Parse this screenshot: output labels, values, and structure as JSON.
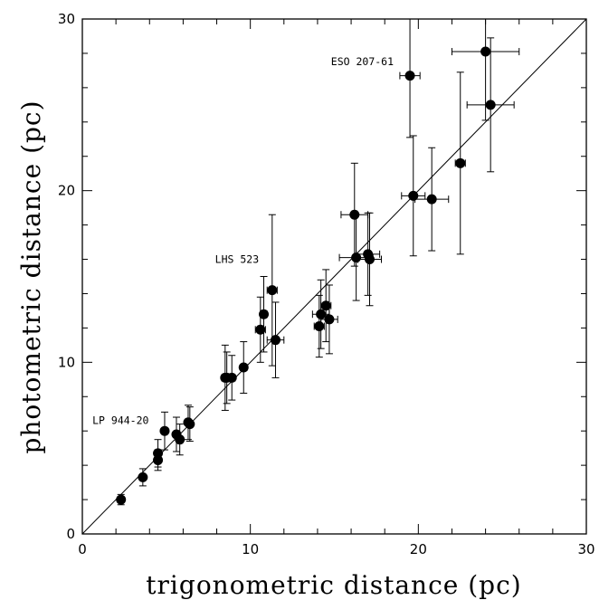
{
  "chart_data": {
    "type": "scatter",
    "title": "",
    "xlabel": "trigonometric distance (pc)",
    "ylabel": "photometric distance (pc)",
    "xlim": [
      0,
      30
    ],
    "ylim": [
      0,
      30
    ],
    "x_ticks": [
      0,
      10,
      20,
      30
    ],
    "y_ticks": [
      0,
      10,
      20,
      30
    ],
    "grid": false,
    "reference_line": "y = x",
    "series": [
      {
        "points": [
          {
            "x": 2.3,
            "y": 2.0,
            "xerr": 0.1,
            "yerr": 0.3
          },
          {
            "x": 3.6,
            "y": 3.3,
            "xerr": 0.1,
            "yerr": 0.5
          },
          {
            "x": 4.5,
            "y": 4.3,
            "xerr": 0.1,
            "yerr": 0.6
          },
          {
            "x": 4.5,
            "y": 4.7,
            "xerr": 0.1,
            "yerr": 0.8
          },
          {
            "x": 4.9,
            "y": 6.0,
            "xerr": 0.1,
            "yerr": 1.1
          },
          {
            "x": 5.6,
            "y": 5.8,
            "xerr": 0.1,
            "yerr": 1.0
          },
          {
            "x": 5.8,
            "y": 5.5,
            "xerr": 0.1,
            "yerr": 0.9
          },
          {
            "x": 6.3,
            "y": 6.5,
            "xerr": 0.15,
            "yerr": 1.0
          },
          {
            "x": 6.4,
            "y": 6.4,
            "xerr": 0.15,
            "yerr": 1.0
          },
          {
            "x": 8.5,
            "y": 9.1,
            "xerr": 0.2,
            "yerr": 1.9
          },
          {
            "x": 8.6,
            "y": 9.1,
            "xerr": 0.2,
            "yerr": 1.5
          },
          {
            "x": 8.9,
            "y": 9.1,
            "xerr": 0.2,
            "yerr": 1.3
          },
          {
            "x": 9.6,
            "y": 9.7,
            "xerr": 0.2,
            "yerr": 1.5
          },
          {
            "x": 10.6,
            "y": 11.9,
            "xerr": 0.3,
            "yerr": 1.9
          },
          {
            "x": 10.8,
            "y": 12.8,
            "xerr": 0.2,
            "yerr": 2.2
          },
          {
            "x": 11.3,
            "y": 14.2,
            "xerr": 0.3,
            "yerr": 4.4
          },
          {
            "x": 11.5,
            "y": 11.3,
            "xerr": 0.5,
            "yerr": 2.2
          },
          {
            "x": 14.1,
            "y": 12.1,
            "xerr": 0.3,
            "yerr": 1.8
          },
          {
            "x": 14.2,
            "y": 12.8,
            "xerr": 0.5,
            "yerr": 2.0
          },
          {
            "x": 14.5,
            "y": 13.3,
            "xerr": 0.3,
            "yerr": 2.1
          },
          {
            "x": 14.7,
            "y": 12.5,
            "xerr": 0.5,
            "yerr": 2.0
          },
          {
            "x": 16.2,
            "y": 18.6,
            "xerr": 0.8,
            "yerr": 3.0
          },
          {
            "x": 16.3,
            "y": 16.1,
            "xerr": 1.0,
            "yerr": 2.5
          },
          {
            "x": 17.0,
            "y": 16.3,
            "xerr": 0.7,
            "yerr": 2.4
          },
          {
            "x": 17.1,
            "y": 16.0,
            "xerr": 0.7,
            "yerr": 2.7
          },
          {
            "x": 19.5,
            "y": 26.7,
            "xerr": 0.6,
            "yerr": 3.6
          },
          {
            "x": 19.7,
            "y": 19.7,
            "xerr": 0.7,
            "yerr": 3.5
          },
          {
            "x": 20.8,
            "y": 19.5,
            "xerr": 1.0,
            "yerr": 3.0
          },
          {
            "x": 22.5,
            "y": 21.6,
            "xerr": 0.3,
            "yerr": 5.3
          },
          {
            "x": 24.0,
            "y": 28.1,
            "xerr": 2.0,
            "yerr": 4.0
          },
          {
            "x": 24.3,
            "y": 25.0,
            "xerr": 1.4,
            "yerr": 3.9
          }
        ]
      }
    ],
    "annotations": [
      {
        "text": "ESO 207-61",
        "x": 14.8,
        "y": 27.3
      },
      {
        "text": "LHS 523",
        "x": 7.9,
        "y": 15.8
      },
      {
        "text": "LP 944-20",
        "x": 0.6,
        "y": 6.4
      }
    ]
  }
}
